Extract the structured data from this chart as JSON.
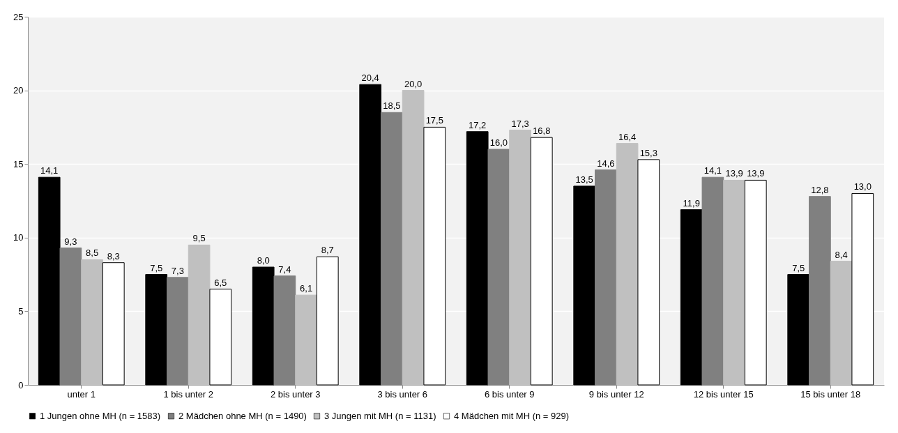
{
  "chart_data": {
    "type": "bar",
    "categories": [
      "unter 1",
      "1 bis unter 2",
      "2 bis unter 3",
      "3 bis unter 6",
      "6 bis unter 9",
      "9 bis unter 12",
      "12 bis unter 15",
      "15 bis unter 18"
    ],
    "series": [
      {
        "name": "1 Jungen ohne MH (n = 1583)",
        "color": "#000000",
        "values": [
          14.1,
          7.5,
          8.0,
          20.4,
          17.2,
          13.5,
          11.9,
          7.5
        ],
        "value_labels": [
          "14,1",
          "7,5",
          "8,0",
          "20,4",
          "17,2",
          "13,5",
          "11,9",
          "7,5"
        ]
      },
      {
        "name": "2 Mädchen ohne MH (n = 1490)",
        "color": "#808080",
        "values": [
          9.3,
          7.3,
          7.4,
          18.5,
          16.0,
          14.6,
          14.1,
          12.8
        ],
        "value_labels": [
          "9,3",
          "7,3",
          "7,4",
          "18,5",
          "16,0",
          "14,6",
          "14,1",
          "12,8"
        ]
      },
      {
        "name": "3 Jungen mit MH (n = 1131)",
        "color": "#c0c0c0",
        "values": [
          8.5,
          9.5,
          6.1,
          20.0,
          17.3,
          16.4,
          13.9,
          8.4
        ],
        "value_labels": [
          "8,5",
          "9,5",
          "6,1",
          "20,0",
          "17,3",
          "16,4",
          "13,9",
          "8,4"
        ]
      },
      {
        "name": "4 Mädchen mit MH (n = 929)",
        "color": "#ffffff",
        "values": [
          8.3,
          6.5,
          8.7,
          17.5,
          16.8,
          15.3,
          13.9,
          13.0
        ],
        "value_labels": [
          "8,3",
          "6,5",
          "8,7",
          "17,5",
          "16,8",
          "15,3",
          "13,9",
          "13,0"
        ]
      }
    ],
    "ylim": [
      0,
      25
    ],
    "yticks": [
      0,
      5,
      10,
      15,
      20,
      25
    ],
    "grid": "y",
    "legend": "bottom"
  }
}
